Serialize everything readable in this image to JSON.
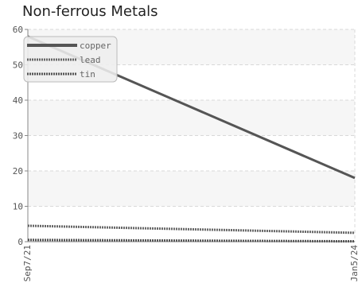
{
  "chart_data": {
    "type": "line",
    "title": "Non-ferrous Metals",
    "xlabel": "",
    "ylabel": "",
    "x": [
      "Sep7/21",
      "Jan5/24"
    ],
    "ylim": [
      0,
      60
    ],
    "yticks": [
      0,
      10,
      20,
      30,
      40,
      50,
      60
    ],
    "grid": true,
    "legend_position": "top-left",
    "series": [
      {
        "name": "copper",
        "values": [
          58,
          18
        ],
        "color": "#555555",
        "style": "solid"
      },
      {
        "name": "lead",
        "values": [
          4.5,
          2.5
        ],
        "color": "#666666",
        "style": "dotted"
      },
      {
        "name": "tin",
        "values": [
          0.5,
          0.1
        ],
        "color": "#555555",
        "style": "dotted"
      }
    ]
  }
}
